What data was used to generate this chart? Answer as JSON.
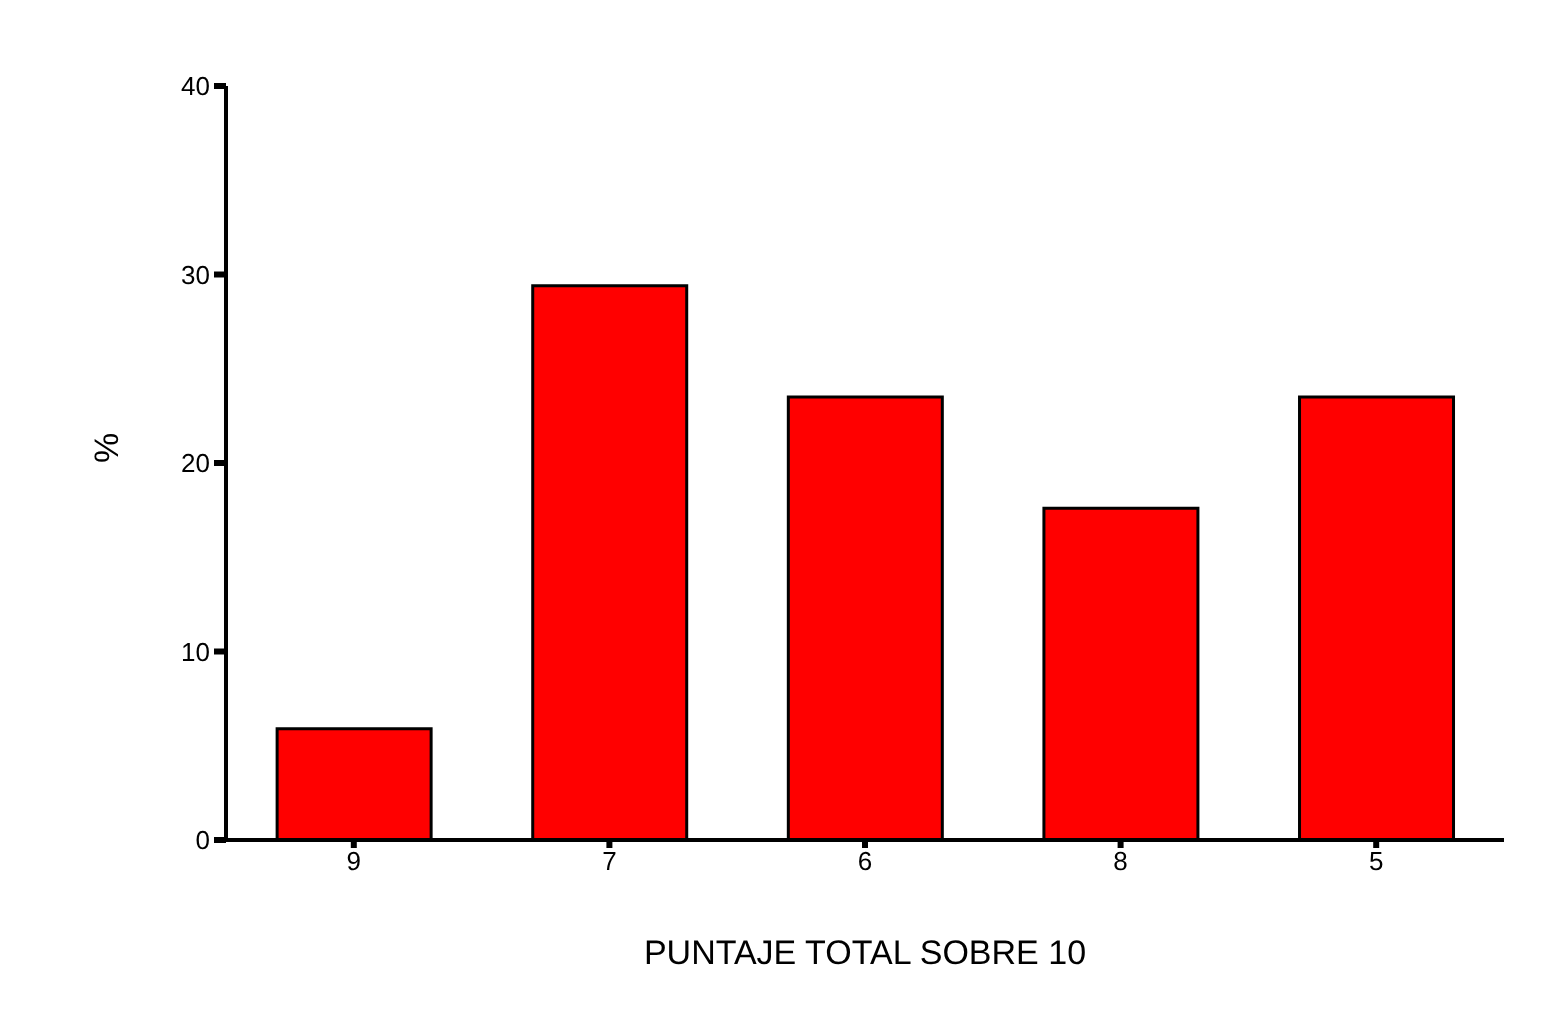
{
  "chart_data": {
    "type": "bar",
    "xlabel": "PUNTAJE TOTAL SOBRE 10",
    "ylabel": "%",
    "categories": [
      "9",
      "7",
      "6",
      "8",
      "5"
    ],
    "values": [
      5.9,
      29.4,
      23.5,
      17.6,
      23.5
    ],
    "color": "#ff0000",
    "ylim": [
      0,
      40
    ],
    "yticks": [
      0,
      10,
      20,
      30,
      40
    ],
    "grid": false,
    "legend": false
  }
}
